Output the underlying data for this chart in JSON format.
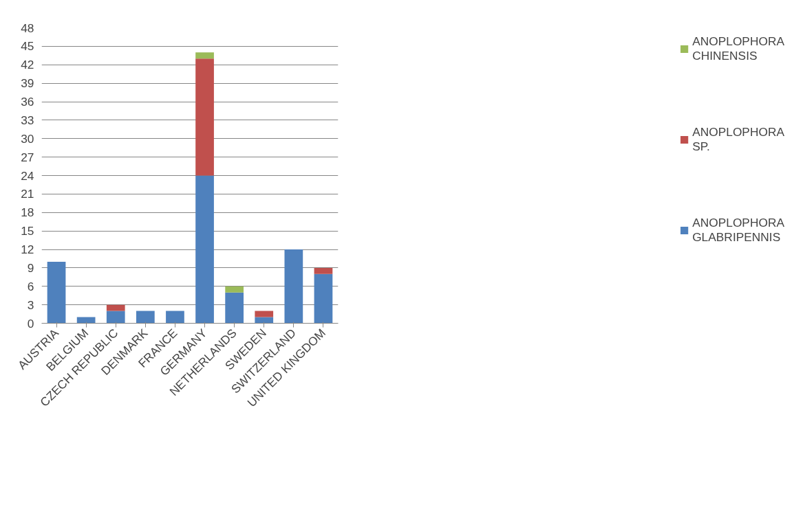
{
  "chart_data": {
    "type": "bar",
    "stacked": true,
    "categories": [
      "AUSTRIA",
      "BELGIUM",
      "CZECH REPUBLIC",
      "DENMARK",
      "FRANCE",
      "GERMANY",
      "NETHERLANDS",
      "SWEDEN",
      "SWITZERLAND",
      "UNITED KINGDOM"
    ],
    "series": [
      {
        "name": "ANOPLOPHORA GLABRIPENNIS",
        "color": "#4f81bd",
        "values": [
          10,
          1,
          2,
          2,
          2,
          24,
          5,
          1,
          12,
          8
        ]
      },
      {
        "name": "ANOPLOPHORA SP.",
        "color": "#c0504d",
        "values": [
          null,
          null,
          1,
          null,
          null,
          19,
          null,
          1,
          null,
          1
        ]
      },
      {
        "name": "ANOPLOPHORA CHINENSIS",
        "color": "#9bbb59",
        "values": [
          null,
          null,
          null,
          null,
          null,
          1,
          1,
          null,
          null,
          null
        ]
      }
    ],
    "ylim": [
      0,
      48
    ],
    "yticks": [
      0,
      3,
      6,
      9,
      12,
      15,
      18,
      21,
      24,
      27,
      30,
      33,
      36,
      39,
      42,
      45,
      48
    ],
    "grid": "y",
    "legend": "right"
  }
}
